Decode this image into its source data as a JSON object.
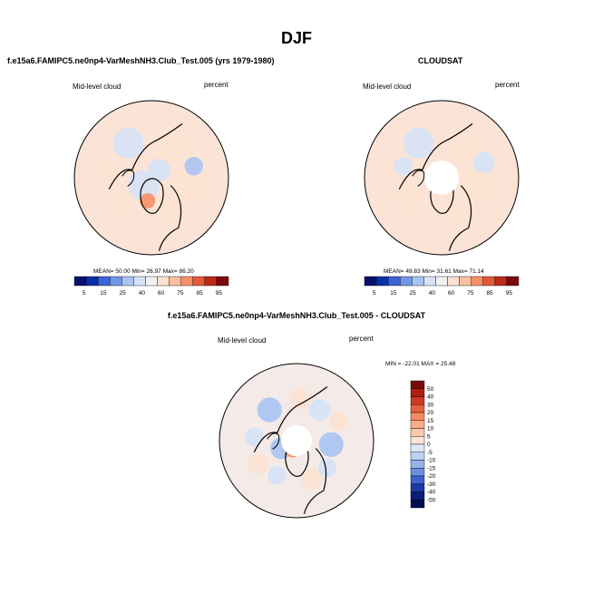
{
  "page": {
    "title": "DJF"
  },
  "chart_data": [
    {
      "type": "polar-map",
      "title": "f.e15a6.FAMIPC5.ne0np4-VarMeshNH3.Club_Test.005 (yrs 1979-1980)",
      "variable": "Mid-level cloud",
      "units": "percent",
      "stats_text": "MEAN=  50.00  Min=  26.97  Max=  86.20",
      "stats": {
        "mean": 50.0,
        "min": 26.97,
        "max": 86.2
      },
      "colorbar": {
        "levels": [
          "5",
          "15",
          "25",
          "40",
          "60",
          "75",
          "85",
          "95"
        ],
        "colors": [
          "#05106d",
          "#0a2fa8",
          "#3a64d8",
          "#7096e8",
          "#a9c3f2",
          "#d6e2f7",
          "#f1f1f1",
          "#fde2d2",
          "#fbbf9f",
          "#f78f66",
          "#e35a38",
          "#bf2a18",
          "#7c0a0a"
        ]
      },
      "patches": [
        {
          "dx": -0.3,
          "dy": -0.45,
          "r": 0.2,
          "v": -1
        },
        {
          "dx": 0.25,
          "dy": -0.4,
          "r": 0.18,
          "v": 1
        },
        {
          "dx": 0.45,
          "dy": 0.1,
          "r": 0.22,
          "v": 1
        },
        {
          "dx": -0.1,
          "dy": 0.1,
          "r": 0.2,
          "v": -1
        },
        {
          "dx": 0.1,
          "dy": -0.1,
          "r": 0.15,
          "v": -1
        },
        {
          "dx": -0.42,
          "dy": 0.3,
          "r": 0.17,
          "v": 1
        },
        {
          "dx": 0.2,
          "dy": 0.45,
          "r": 0.18,
          "v": 1
        },
        {
          "dx": -0.05,
          "dy": 0.3,
          "r": 0.1,
          "v": 3
        },
        {
          "dx": 0.55,
          "dy": -0.15,
          "r": 0.12,
          "v": -2
        },
        {
          "dx": -0.55,
          "dy": -0.1,
          "r": 0.14,
          "v": 1
        }
      ]
    },
    {
      "type": "polar-map",
      "title": "CLOUDSAT",
      "variable": "Mid-level cloud",
      "units": "percent",
      "stats_text": "MEAN=  49.83  Min=  31.61  Max=  71.14",
      "stats": {
        "mean": 49.83,
        "min": 31.61,
        "max": 71.14
      },
      "colorbar": {
        "levels": [
          "5",
          "15",
          "25",
          "40",
          "60",
          "75",
          "85",
          "95"
        ],
        "colors": [
          "#05106d",
          "#0a2fa8",
          "#3a64d8",
          "#7096e8",
          "#a9c3f2",
          "#d6e2f7",
          "#f1f1f1",
          "#fde2d2",
          "#fbbf9f",
          "#f78f66",
          "#e35a38",
          "#bf2a18",
          "#7c0a0a"
        ]
      },
      "patches": [
        {
          "dx": -0.3,
          "dy": -0.45,
          "r": 0.2,
          "v": -1
        },
        {
          "dx": 0.3,
          "dy": -0.4,
          "r": 0.2,
          "v": 1
        },
        {
          "dx": 0.45,
          "dy": 0.15,
          "r": 0.22,
          "v": 1
        },
        {
          "dx": -0.45,
          "dy": 0.25,
          "r": 0.2,
          "v": 1
        },
        {
          "dx": 0.15,
          "dy": 0.5,
          "r": 0.16,
          "v": 1
        },
        {
          "dx": -0.5,
          "dy": -0.15,
          "r": 0.12,
          "v": -1
        },
        {
          "dx": 0.55,
          "dy": -0.2,
          "r": 0.14,
          "v": -1
        }
      ]
    },
    {
      "type": "polar-map",
      "title": "f.e15a6.FAMIPC5.ne0np4-VarMeshNH3.Club_Test.005 - CLOUDSAT",
      "variable": "Mid-level cloud",
      "units": "percent",
      "stats_text": "MIN = -22.01 MAX =  25.48",
      "stats": {
        "min": -22.01,
        "max": 25.48
      },
      "colorbar": {
        "levels": [
          "50",
          "40",
          "30",
          "20",
          "15",
          "10",
          "5",
          "0",
          "-5",
          "-10",
          "-15",
          "-20",
          "-30",
          "-40",
          "-50"
        ],
        "colors": [
          "#7c0a0a",
          "#b01e12",
          "#d13a22",
          "#e8603c",
          "#f58a62",
          "#f9ab88",
          "#fbc7ac",
          "#fde3d4",
          "#dde8f7",
          "#bcd2f2",
          "#94b4ea",
          "#6a90de",
          "#3e62cc",
          "#1c39a6",
          "#0a1d7a",
          "#040c52"
        ]
      },
      "patches": [
        {
          "dx": -0.35,
          "dy": -0.4,
          "r": 0.16,
          "v": -2
        },
        {
          "dx": 0.3,
          "dy": -0.4,
          "r": 0.14,
          "v": -1
        },
        {
          "dx": 0.45,
          "dy": 0.05,
          "r": 0.16,
          "v": -2
        },
        {
          "dx": -0.2,
          "dy": 0.1,
          "r": 0.14,
          "v": -2
        },
        {
          "dx": -0.05,
          "dy": 0.12,
          "r": 0.1,
          "v": 3
        },
        {
          "dx": -0.5,
          "dy": 0.3,
          "r": 0.14,
          "v": 1
        },
        {
          "dx": 0.2,
          "dy": 0.5,
          "r": 0.14,
          "v": 1
        },
        {
          "dx": 0.55,
          "dy": -0.25,
          "r": 0.12,
          "v": 1
        },
        {
          "dx": -0.55,
          "dy": -0.05,
          "r": 0.12,
          "v": -1
        },
        {
          "dx": 0.05,
          "dy": -0.55,
          "r": 0.14,
          "v": 1
        },
        {
          "dx": 0.4,
          "dy": 0.35,
          "r": 0.12,
          "v": -1
        },
        {
          "dx": -0.25,
          "dy": 0.45,
          "r": 0.12,
          "v": -1
        }
      ]
    }
  ]
}
